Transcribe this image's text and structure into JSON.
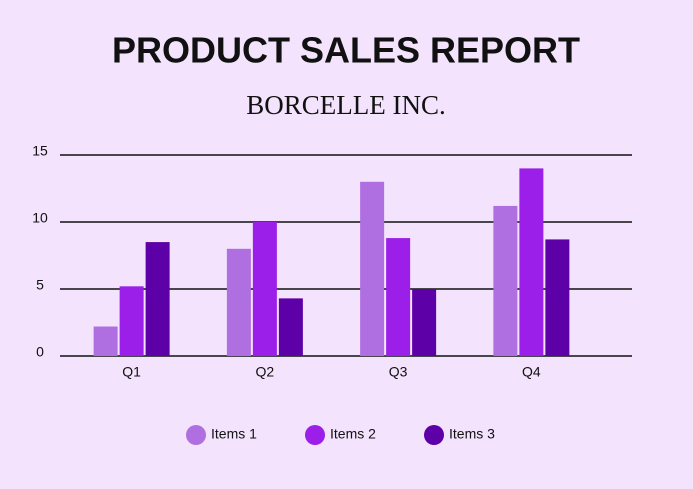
{
  "chart_data": {
    "type": "bar",
    "title": "PRODUCT SALES REPORT",
    "subtitle": "BORCELLE INC.",
    "categories": [
      "Q1",
      "Q2",
      "Q3",
      "Q4"
    ],
    "series": [
      {
        "name": "Items 1",
        "color": "#b06fe0",
        "values": [
          2.2,
          8,
          13,
          11.2
        ]
      },
      {
        "name": "Items 2",
        "color": "#9b1fe8",
        "values": [
          5.2,
          10,
          8.8,
          14
        ]
      },
      {
        "name": "Items 3",
        "color": "#5e00a8",
        "values": [
          8.5,
          4.3,
          5,
          8.7
        ]
      }
    ],
    "ylim": [
      0,
      15
    ],
    "yticks": [
      0,
      5,
      10,
      15
    ],
    "grid": true,
    "legend": "bottom"
  }
}
